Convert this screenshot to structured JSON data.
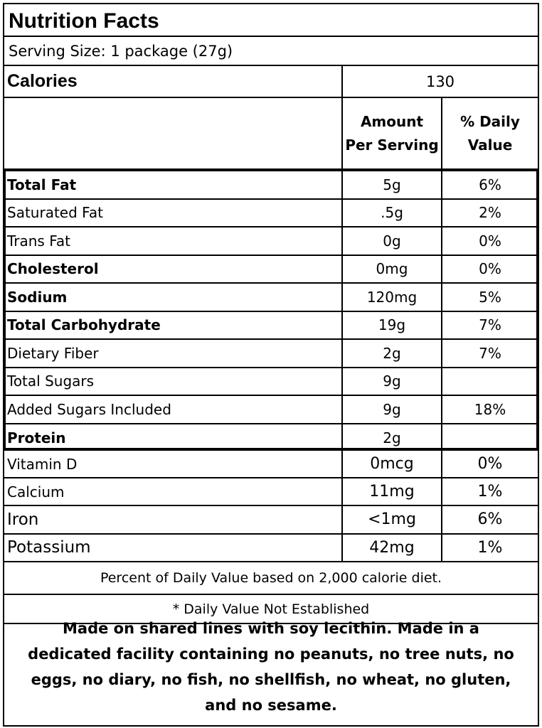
{
  "title": "Nutrition Facts",
  "serving_size": "Serving Size: 1 package (27g)",
  "calories": {
    "label": "Calories",
    "value": "130"
  },
  "headers": {
    "amount_line1": "Amount",
    "amount_line2": "Per Serving",
    "dv_line1": "% Daily",
    "dv_line2": "Value"
  },
  "nutrients": [
    {
      "name": "Total Fat",
      "amount": "5g",
      "dv": "6%",
      "bold": true
    },
    {
      "name": "Saturated Fat",
      "amount": ".5g",
      "dv": "2%",
      "bold": false
    },
    {
      "name": "Trans Fat",
      "amount": "0g",
      "dv": "0%",
      "bold": false
    },
    {
      "name": "Cholesterol",
      "amount": "0mg",
      "dv": "0%",
      "bold": true
    },
    {
      "name": "Sodium",
      "amount": "120mg",
      "dv": "5%",
      "bold": true
    },
    {
      "name": "Total Carbohydrate",
      "amount": "19g",
      "dv": "7%",
      "bold": true
    },
    {
      "name": "Dietary Fiber",
      "amount": "2g",
      "dv": "7%",
      "bold": false
    },
    {
      "name": "Total Sugars",
      "amount": "9g",
      "dv": "",
      "bold": false
    },
    {
      "name": "Added Sugars Included",
      "amount": "9g",
      "dv": "18%",
      "bold": false
    },
    {
      "name": "Protein",
      "amount": "2g",
      "dv": "",
      "bold": true
    }
  ],
  "vitamins": [
    {
      "name": "Vitamin D",
      "amount": "0mcg",
      "dv": "0%"
    },
    {
      "name": "Calcium",
      "amount": "11mg",
      "dv": "1%"
    },
    {
      "name": "Iron",
      "amount": "<1mg",
      "dv": "6%"
    },
    {
      "name": "Potassium",
      "amount": "42mg",
      "dv": "1%"
    }
  ],
  "footnote1": "Percent of Daily Value based on 2,000 calorie diet.",
  "footnote2": "* Daily Value Not Established",
  "allergen": "Made on shared lines with soy lecithin.  Made in a dedicated facility containing no peanuts, no tree nuts, no eggs, no diary, no fish, no shellfish, no wheat, no gluten, and no sesame."
}
